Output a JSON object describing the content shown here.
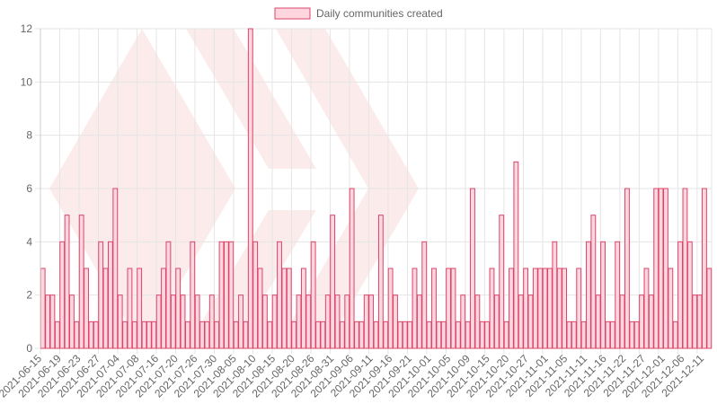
{
  "legend": {
    "label": "Daily communities created"
  },
  "colors": {
    "bar_fill": "#ffd6dd",
    "bar_stroke": "#d9456b",
    "grid": "#e5e5e5",
    "axis": "#cccccc",
    "text": "#666666",
    "watermark": "#f7d3d3"
  },
  "watermark": {
    "icon": "hive-logo-icon"
  },
  "chart_data": {
    "type": "bar",
    "series": [
      {
        "name": "Daily communities created",
        "values": [
          3,
          2,
          2,
          1,
          4,
          5,
          2,
          1,
          5,
          3,
          1,
          1,
          4,
          3,
          4,
          6,
          2,
          1,
          3,
          1,
          3,
          1,
          1,
          1,
          2,
          3,
          4,
          2,
          3,
          2,
          1,
          4,
          2,
          1,
          1,
          2,
          1,
          4,
          4,
          4,
          1,
          2,
          1,
          12,
          4,
          3,
          2,
          1,
          2,
          4,
          3,
          3,
          1,
          2,
          3,
          2,
          4,
          1,
          1,
          2,
          5,
          2,
          1,
          2,
          6,
          1,
          1,
          2,
          2,
          1,
          5,
          1,
          3,
          2,
          1,
          1,
          1,
          3,
          2,
          4,
          1,
          3,
          1,
          1,
          3,
          3,
          1,
          2,
          1,
          6,
          2,
          1,
          1,
          3,
          2,
          5,
          1,
          3,
          7,
          2,
          3,
          2,
          3,
          3,
          3,
          3,
          4,
          3,
          3,
          1,
          1,
          3,
          1,
          4,
          5,
          2,
          4,
          1,
          1,
          4,
          2,
          6,
          1,
          1,
          2,
          3,
          2,
          6,
          6,
          6,
          3,
          1,
          4,
          6,
          4,
          2,
          2,
          6,
          3
        ]
      }
    ],
    "x_tick_labels": [
      "2021-06-15",
      "2021-06-19",
      "2021-06-23",
      "2021-06-27",
      "2021-07-04",
      "2021-07-08",
      "2021-07-16",
      "2021-07-20",
      "2021-07-26",
      "2021-07-30",
      "2021-08-05",
      "2021-08-10",
      "2021-08-15",
      "2021-08-20",
      "2021-08-26",
      "2021-08-31",
      "2021-09-06",
      "2021-09-11",
      "2021-09-16",
      "2021-09-21",
      "2021-10-01",
      "2021-10-05",
      "2021-10-09",
      "2021-10-15",
      "2021-10-20",
      "2021-10-27",
      "2021-11-01",
      "2021-11-05",
      "2021-11-11",
      "2021-11-16",
      "2021-11-22",
      "2021-11-27",
      "2021-12-01",
      "2021-12-06",
      "2021-12-11"
    ],
    "y_ticks": [
      0,
      2,
      4,
      6,
      8,
      10,
      12
    ],
    "ylim": [
      0,
      12
    ],
    "grid": true,
    "legend_position": "top-center"
  }
}
